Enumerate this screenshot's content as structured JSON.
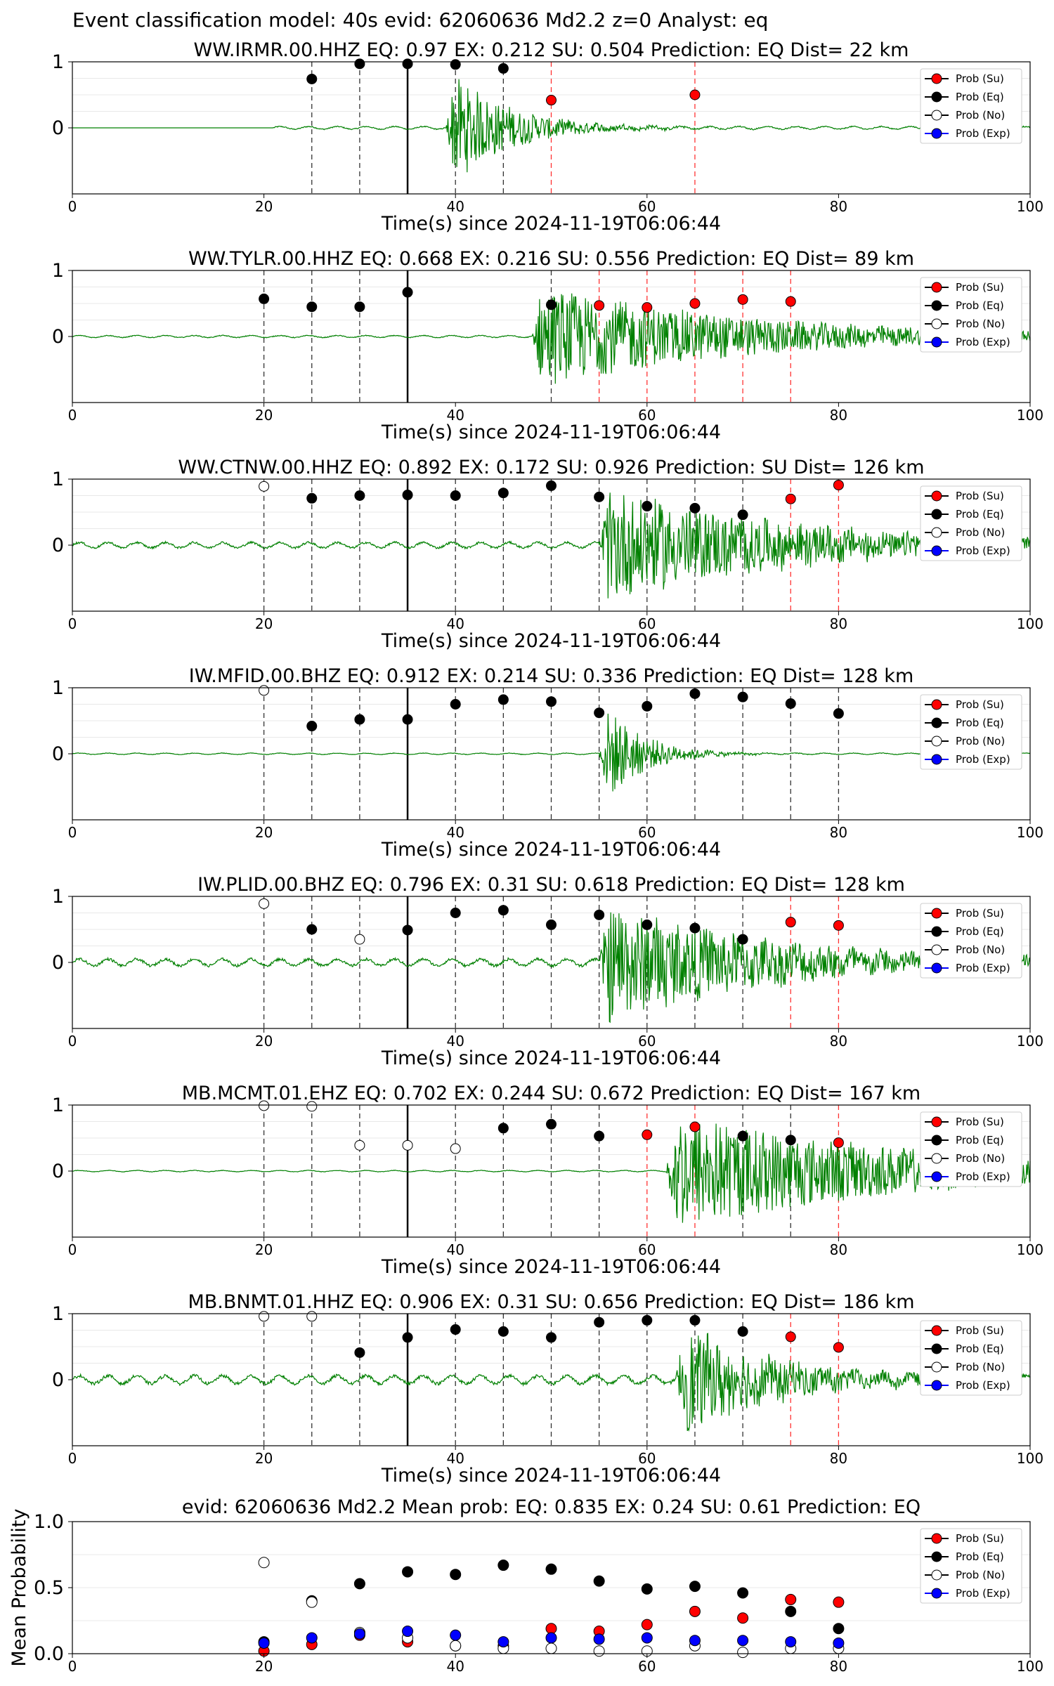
{
  "figure_title": "Event classification model: 40s evid: 62060636 Md2.2 z=0 Analyst: eq",
  "colors": {
    "trace": "#008000",
    "su": "#ff0000",
    "eq": "#000000",
    "no": "#ffffff",
    "exp": "#0000ff",
    "grid": "#e8e8e8"
  },
  "legend": [
    "Prob (Su)",
    "Prob (Eq)",
    "Prob (No)",
    "Prob (Exp)"
  ],
  "chart_data": [
    {
      "type": "scatter",
      "title": "WW.IRMR.00.HHZ   EQ: 0.97  EX: 0.212  SU: 0.504   Prediction: EQ    Dist= 22 km",
      "xlabel": "Time(s) since 2024-11-19T06:06:44",
      "ylabel": "",
      "xlim": [
        0,
        100
      ],
      "xticks": [
        0,
        20,
        40,
        60,
        80,
        100
      ],
      "yticks": [
        0,
        1
      ],
      "ylim": [
        -1,
        1
      ],
      "reference_line": 35,
      "waveform": {
        "start": 21,
        "first_arrival": 39,
        "peak_amp": 0.95,
        "decay": 6,
        "noise": 0.02
      },
      "windows": [
        {
          "x": 25,
          "label": "Eq",
          "y": 0.74
        },
        {
          "x": 30,
          "label": "Eq",
          "y": 0.97
        },
        {
          "x": 35,
          "label": "Eq",
          "y": 0.97
        },
        {
          "x": 40,
          "label": "Eq",
          "y": 0.96
        },
        {
          "x": 45,
          "label": "Eq",
          "y": 0.9
        },
        {
          "x": 50,
          "label": "Su",
          "y": 0.42
        },
        {
          "x": 65,
          "label": "Su",
          "y": 0.5
        }
      ]
    },
    {
      "type": "scatter",
      "title": "WW.TYLR.00.HHZ   EQ: 0.668  EX: 0.216  SU: 0.556   Prediction: EQ    Dist= 89 km",
      "xlabel": "Time(s) since 2024-11-19T06:06:44",
      "ylabel": "",
      "xlim": [
        0,
        100
      ],
      "xticks": [
        0,
        20,
        40,
        60,
        80,
        100
      ],
      "yticks": [
        0,
        1
      ],
      "ylim": [
        -1,
        1
      ],
      "reference_line": 35,
      "waveform": {
        "start": 0,
        "first_arrival": 48,
        "peak_amp": 0.8,
        "decay": 22,
        "noise": 0.015
      },
      "windows": [
        {
          "x": 20,
          "label": "Eq",
          "y": 0.57
        },
        {
          "x": 25,
          "label": "Eq",
          "y": 0.45
        },
        {
          "x": 30,
          "label": "Eq",
          "y": 0.45
        },
        {
          "x": 35,
          "label": "Eq",
          "y": 0.67
        },
        {
          "x": 50,
          "label": "Eq",
          "y": 0.48
        },
        {
          "x": 55,
          "label": "Su",
          "y": 0.47
        },
        {
          "x": 60,
          "label": "Su",
          "y": 0.44
        },
        {
          "x": 65,
          "label": "Su",
          "y": 0.5
        },
        {
          "x": 70,
          "label": "Su",
          "y": 0.56
        },
        {
          "x": 75,
          "label": "Su",
          "y": 0.53
        }
      ]
    },
    {
      "type": "scatter",
      "title": "WW.CTNW.00.HHZ   EQ: 0.892  EX: 0.172  SU: 0.926   Prediction: SU    Dist= 126 km",
      "xlabel": "Time(s) since 2024-11-19T06:06:44",
      "ylabel": "",
      "xlim": [
        0,
        100
      ],
      "xticks": [
        0,
        20,
        40,
        60,
        80,
        100
      ],
      "yticks": [
        0,
        1
      ],
      "ylim": [
        -1,
        1
      ],
      "reference_line": 35,
      "waveform": {
        "start": 0,
        "first_arrival": 55,
        "peak_amp": 0.9,
        "decay": 20,
        "noise": 0.04
      },
      "windows": [
        {
          "x": 20,
          "label": "No",
          "y": 0.89
        },
        {
          "x": 25,
          "label": "Eq",
          "y": 0.71
        },
        {
          "x": 30,
          "label": "Eq",
          "y": 0.75
        },
        {
          "x": 35,
          "label": "Eq",
          "y": 0.76
        },
        {
          "x": 40,
          "label": "Eq",
          "y": 0.75
        },
        {
          "x": 45,
          "label": "Eq",
          "y": 0.79
        },
        {
          "x": 50,
          "label": "Eq",
          "y": 0.9
        },
        {
          "x": 55,
          "label": "Eq",
          "y": 0.73
        },
        {
          "x": 60,
          "label": "Eq",
          "y": 0.59
        },
        {
          "x": 65,
          "label": "Eq",
          "y": 0.56
        },
        {
          "x": 70,
          "label": "Eq",
          "y": 0.46
        },
        {
          "x": 75,
          "label": "Su",
          "y": 0.7
        },
        {
          "x": 80,
          "label": "Su",
          "y": 0.91
        }
      ]
    },
    {
      "type": "scatter",
      "title": "IW.MFID.00.BHZ   EQ: 0.912  EX: 0.214  SU: 0.336   Prediction: EQ    Dist= 128 km",
      "xlabel": "Time(s) since 2024-11-19T06:06:44",
      "ylabel": "",
      "xlim": [
        0,
        100
      ],
      "xticks": [
        0,
        20,
        40,
        60,
        80,
        100
      ],
      "yticks": [
        0,
        1
      ],
      "ylim": [
        -1,
        1
      ],
      "reference_line": 35,
      "waveform": {
        "start": 0,
        "first_arrival": 55,
        "peak_amp": 0.9,
        "decay": 4,
        "noise": 0.01
      },
      "windows": [
        {
          "x": 20,
          "label": "No",
          "y": 0.96
        },
        {
          "x": 25,
          "label": "Eq",
          "y": 0.42
        },
        {
          "x": 30,
          "label": "Eq",
          "y": 0.52
        },
        {
          "x": 35,
          "label": "Eq",
          "y": 0.52
        },
        {
          "x": 40,
          "label": "Eq",
          "y": 0.75
        },
        {
          "x": 45,
          "label": "Eq",
          "y": 0.82
        },
        {
          "x": 50,
          "label": "Eq",
          "y": 0.79
        },
        {
          "x": 55,
          "label": "Eq",
          "y": 0.62
        },
        {
          "x": 60,
          "label": "Eq",
          "y": 0.72
        },
        {
          "x": 65,
          "label": "Eq",
          "y": 0.91
        },
        {
          "x": 70,
          "label": "Eq",
          "y": 0.86
        },
        {
          "x": 75,
          "label": "Eq",
          "y": 0.76
        },
        {
          "x": 80,
          "label": "Eq",
          "y": 0.61
        }
      ]
    },
    {
      "type": "scatter",
      "title": "IW.PLID.00.BHZ   EQ: 0.796  EX: 0.31  SU: 0.618   Prediction: EQ    Dist= 128 km",
      "xlabel": "Time(s) since 2024-11-19T06:06:44",
      "ylabel": "",
      "xlim": [
        0,
        100
      ],
      "xticks": [
        0,
        20,
        40,
        60,
        80,
        100
      ],
      "yticks": [
        0,
        1
      ],
      "ylim": [
        -1,
        1
      ],
      "reference_line": 35,
      "waveform": {
        "start": 0,
        "first_arrival": 55,
        "peak_amp": 0.95,
        "decay": 18,
        "noise": 0.05
      },
      "windows": [
        {
          "x": 20,
          "label": "No",
          "y": 0.89
        },
        {
          "x": 25,
          "label": "Eq",
          "y": 0.5
        },
        {
          "x": 30,
          "label": "No",
          "y": 0.35
        },
        {
          "x": 35,
          "label": "Eq",
          "y": 0.49
        },
        {
          "x": 40,
          "label": "Eq",
          "y": 0.75
        },
        {
          "x": 45,
          "label": "Eq",
          "y": 0.79
        },
        {
          "x": 50,
          "label": "Eq",
          "y": 0.57
        },
        {
          "x": 55,
          "label": "Eq",
          "y": 0.72
        },
        {
          "x": 60,
          "label": "Eq",
          "y": 0.57
        },
        {
          "x": 65,
          "label": "Eq",
          "y": 0.52
        },
        {
          "x": 70,
          "label": "Eq",
          "y": 0.35
        },
        {
          "x": 75,
          "label": "Su",
          "y": 0.61
        },
        {
          "x": 80,
          "label": "Su",
          "y": 0.56
        }
      ]
    },
    {
      "type": "scatter",
      "title": "MB.MCMT.01.EHZ   EQ: 0.702  EX: 0.244  SU: 0.672   Prediction: EQ    Dist= 167 km",
      "xlabel": "Time(s) since 2024-11-19T06:06:44",
      "ylabel": "",
      "xlim": [
        0,
        100
      ],
      "xticks": [
        0,
        20,
        40,
        60,
        80,
        100
      ],
      "yticks": [
        0,
        1
      ],
      "ylim": [
        -1,
        1
      ],
      "reference_line": 35,
      "waveform": {
        "start": 0,
        "first_arrival": 62,
        "peak_amp": 0.95,
        "decay": 25,
        "noise": 0.01
      },
      "windows": [
        {
          "x": 20,
          "label": "No",
          "y": 0.99
        },
        {
          "x": 25,
          "label": "No",
          "y": 0.98
        },
        {
          "x": 30,
          "label": "No",
          "y": 0.39
        },
        {
          "x": 35,
          "label": "No",
          "y": 0.39
        },
        {
          "x": 40,
          "label": "No",
          "y": 0.34
        },
        {
          "x": 45,
          "label": "Eq",
          "y": 0.65
        },
        {
          "x": 50,
          "label": "Eq",
          "y": 0.71
        },
        {
          "x": 55,
          "label": "Eq",
          "y": 0.53
        },
        {
          "x": 60,
          "label": "Su",
          "y": 0.55
        },
        {
          "x": 65,
          "label": "Su",
          "y": 0.67
        },
        {
          "x": 70,
          "label": "Eq",
          "y": 0.53
        },
        {
          "x": 75,
          "label": "Eq",
          "y": 0.47
        },
        {
          "x": 80,
          "label": "Su",
          "y": 0.43
        }
      ]
    },
    {
      "type": "scatter",
      "title": "MB.BNMT.01.HHZ   EQ: 0.906  EX: 0.31  SU: 0.656   Prediction: EQ    Dist= 186 km",
      "xlabel": "Time(s) since 2024-11-19T06:06:44",
      "ylabel": "",
      "xlim": [
        0,
        100
      ],
      "xticks": [
        0,
        20,
        40,
        60,
        80,
        100
      ],
      "yticks": [
        0,
        1
      ],
      "ylim": [
        -1,
        1
      ],
      "reference_line": 35,
      "waveform": {
        "start": 0,
        "first_arrival": 63,
        "peak_amp": 0.9,
        "decay": 10,
        "noise": 0.06
      },
      "windows": [
        {
          "x": 20,
          "label": "No",
          "y": 0.96
        },
        {
          "x": 25,
          "label": "No",
          "y": 0.96
        },
        {
          "x": 30,
          "label": "Eq",
          "y": 0.41
        },
        {
          "x": 35,
          "label": "Eq",
          "y": 0.64
        },
        {
          "x": 40,
          "label": "Eq",
          "y": 0.76
        },
        {
          "x": 45,
          "label": "Eq",
          "y": 0.73
        },
        {
          "x": 50,
          "label": "Eq",
          "y": 0.64
        },
        {
          "x": 55,
          "label": "Eq",
          "y": 0.87
        },
        {
          "x": 60,
          "label": "Eq",
          "y": 0.9
        },
        {
          "x": 65,
          "label": "Eq",
          "y": 0.9
        },
        {
          "x": 70,
          "label": "Eq",
          "y": 0.73
        },
        {
          "x": 75,
          "label": "Su",
          "y": 0.65
        },
        {
          "x": 80,
          "label": "Su",
          "y": 0.49
        }
      ]
    },
    {
      "type": "scatter",
      "title": "evid: 62060636  Md2.2   Mean prob:   EQ: 0.835  EX: 0.24  SU: 0.61   Prediction: EQ",
      "xlabel": "",
      "ylabel": "Mean Probability",
      "xlim": [
        0,
        100
      ],
      "ylim": [
        0,
        1.0
      ],
      "xticks": [
        0,
        20,
        40,
        60,
        80,
        100
      ],
      "yticks": [
        0.0,
        0.5,
        1.0
      ],
      "x": [
        20,
        25,
        30,
        35,
        40,
        45,
        50,
        55,
        60,
        65,
        70,
        75,
        80
      ],
      "series": [
        {
          "name": "Prob (Su)",
          "color": "#ff0000",
          "values": [
            0.02,
            0.07,
            0.14,
            0.09,
            0.06,
            0.06,
            0.19,
            0.17,
            0.22,
            0.32,
            0.27,
            0.41,
            0.39
          ]
        },
        {
          "name": "Prob (Eq)",
          "color": "#000000",
          "values": [
            0.09,
            0.4,
            0.53,
            0.62,
            0.6,
            0.67,
            0.64,
            0.55,
            0.49,
            0.51,
            0.46,
            0.32,
            0.19
          ]
        },
        {
          "name": "Prob (No)",
          "color": "#ffffff",
          "values": [
            0.69,
            0.39,
            0.16,
            0.12,
            0.06,
            0.04,
            0.04,
            0.02,
            0.02,
            0.06,
            0.01,
            0.04,
            0.04
          ]
        },
        {
          "name": "Prob (Exp)",
          "color": "#0000ff",
          "values": [
            0.08,
            0.12,
            0.15,
            0.17,
            0.14,
            0.09,
            0.12,
            0.11,
            0.12,
            0.1,
            0.1,
            0.09,
            0.08
          ]
        }
      ]
    }
  ]
}
